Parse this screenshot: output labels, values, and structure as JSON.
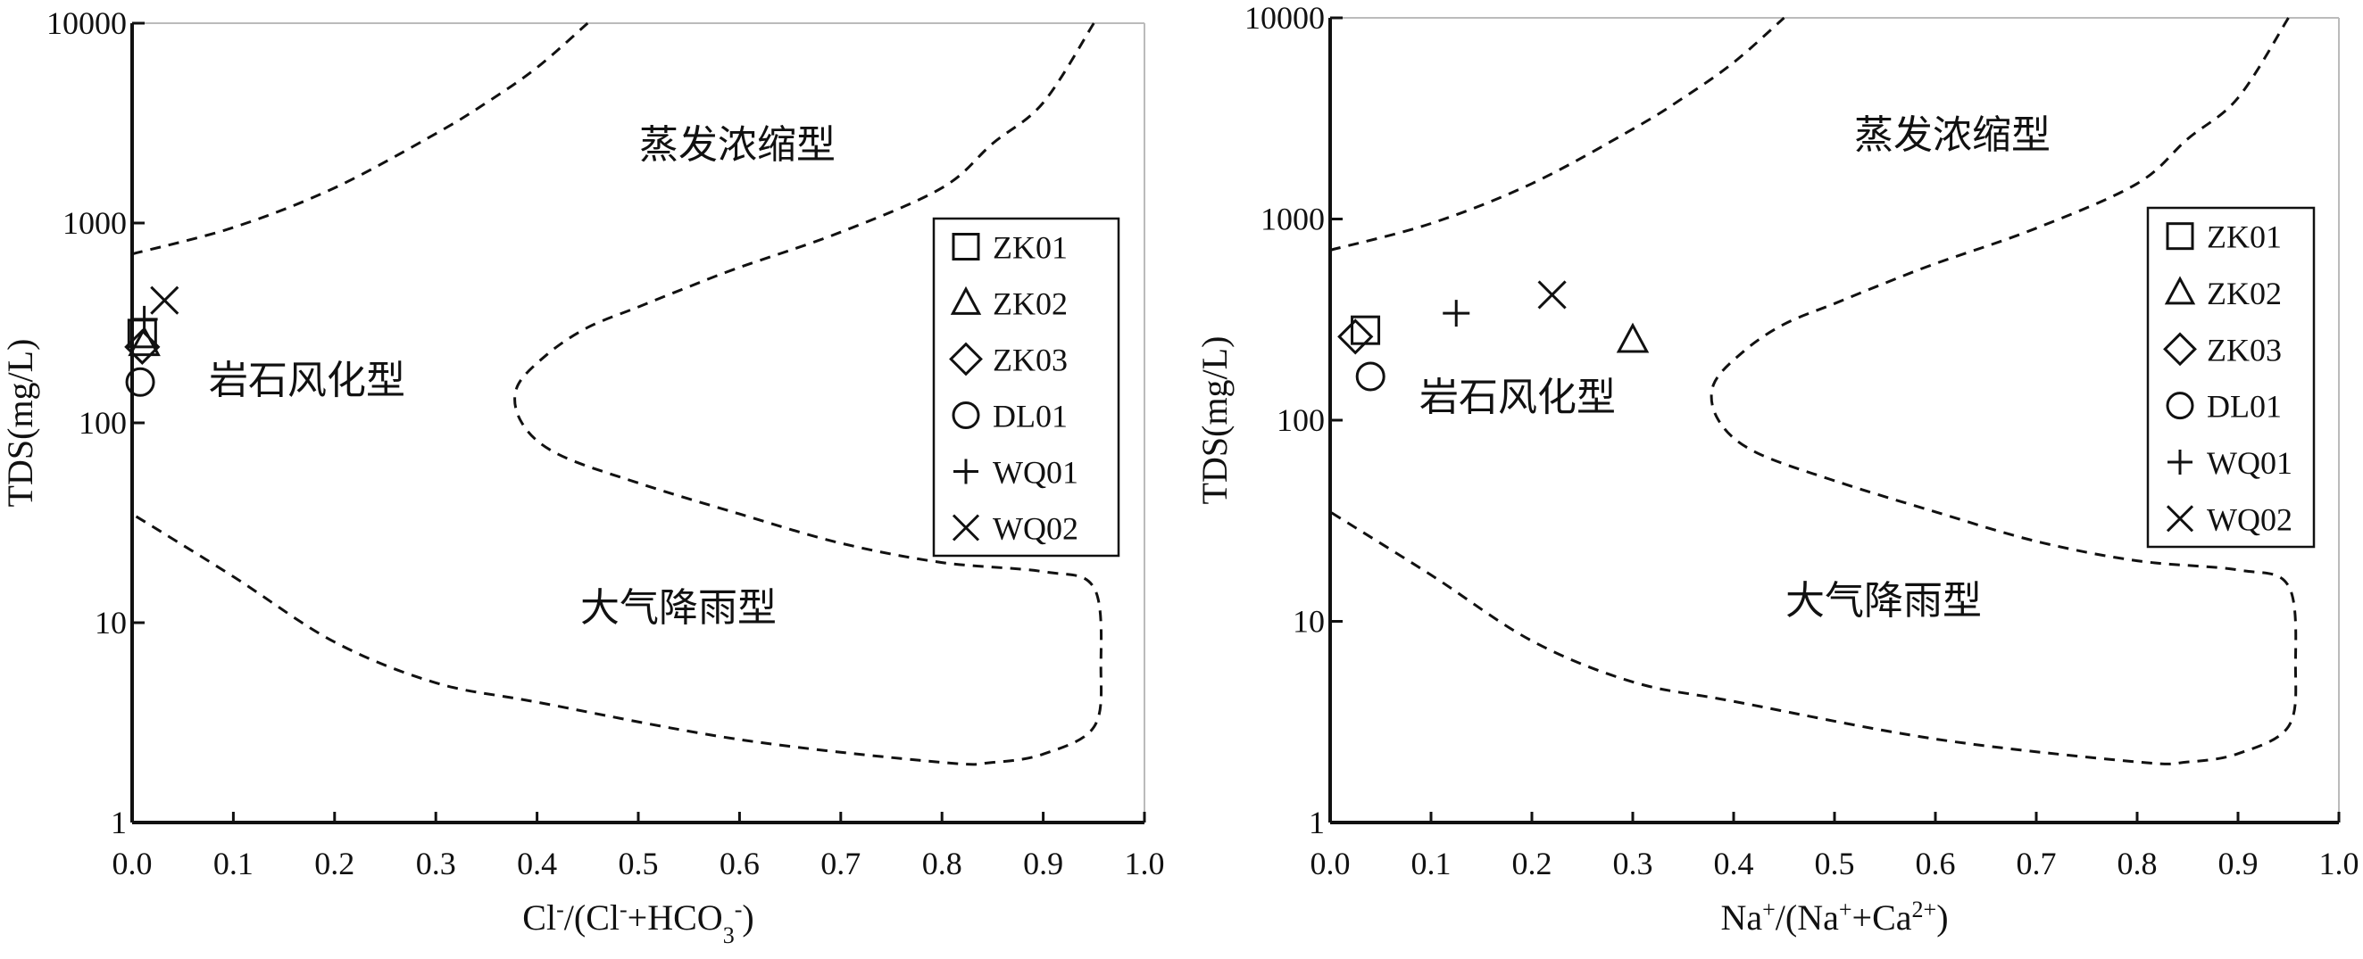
{
  "chart_data": [
    {
      "type": "scatter",
      "y_scale": "log",
      "xlim": [
        0.0,
        1.0
      ],
      "ylim": [
        1,
        10000
      ],
      "x_ticks": [
        "0.0",
        "0.1",
        "0.2",
        "0.3",
        "0.4",
        "0.5",
        "0.6",
        "0.7",
        "0.8",
        "0.9",
        "1.0"
      ],
      "y_ticks": [
        "1",
        "10",
        "100",
        "1000",
        "10000"
      ],
      "ylabel": "TDS(mg/L)",
      "xlabel": {
        "p1": "Cl",
        "s1": "-",
        "p2": "/(Cl",
        "s2": "-",
        "p3": "+HCO",
        "b1": "3",
        "s3": "-",
        "p4": ")"
      },
      "regions": {
        "evaporation": "蒸发浓缩型",
        "rock": "岩石风化型",
        "precipitation": "大气降雨型"
      },
      "boundaries": {
        "upper": [
          [
            0.0,
            700
          ],
          [
            0.1,
            950
          ],
          [
            0.2,
            1500
          ],
          [
            0.3,
            2800
          ],
          [
            0.35,
            4000
          ],
          [
            0.4,
            6000
          ],
          [
            0.45,
            10000
          ]
        ],
        "lower_envelope": [
          [
            0.95,
            10000
          ],
          [
            0.9,
            4000
          ],
          [
            0.85,
            2500
          ],
          [
            0.8,
            1500
          ],
          [
            0.7,
            900
          ],
          [
            0.6,
            600
          ],
          [
            0.55,
            480
          ],
          [
            0.5,
            380
          ],
          [
            0.45,
            300
          ],
          [
            0.41,
            220
          ],
          [
            0.38,
            150
          ],
          [
            0.385,
            100
          ],
          [
            0.42,
            70
          ],
          [
            0.5,
            50
          ],
          [
            0.6,
            35
          ],
          [
            0.7,
            25
          ],
          [
            0.8,
            20
          ],
          [
            0.9,
            18
          ],
          [
            0.95,
            15
          ],
          [
            0.957,
            6
          ],
          [
            0.95,
            3
          ],
          [
            0.9,
            2.2
          ],
          [
            0.85,
            2.0
          ],
          [
            0.8,
            2.0
          ],
          [
            0.6,
            2.6
          ],
          [
            0.4,
            4
          ],
          [
            0.3,
            5
          ],
          [
            0.2,
            8
          ],
          [
            0.1,
            17
          ],
          [
            0.0,
            35
          ]
        ]
      },
      "series": [
        {
          "name": "ZK01",
          "marker": "square",
          "points": [
            [
              0.01,
              280
            ]
          ]
        },
        {
          "name": "ZK02",
          "marker": "triangle",
          "points": [
            [
              0.012,
              250
            ]
          ]
        },
        {
          "name": "ZK03",
          "marker": "diamond",
          "points": [
            [
              0.01,
              240
            ]
          ]
        },
        {
          "name": "DL01",
          "marker": "circle",
          "points": [
            [
              0.008,
              160
            ]
          ]
        },
        {
          "name": "WQ01",
          "marker": "plus",
          "points": [
            [
              0.012,
              330
            ]
          ]
        },
        {
          "name": "WQ02",
          "marker": "cross",
          "points": [
            [
              0.032,
              410
            ]
          ]
        }
      ],
      "legend_position": "right"
    },
    {
      "type": "scatter",
      "y_scale": "log",
      "xlim": [
        0.0,
        1.0
      ],
      "ylim": [
        1,
        10000
      ],
      "x_ticks": [
        "0.0",
        "0.1",
        "0.2",
        "0.3",
        "0.4",
        "0.5",
        "0.6",
        "0.7",
        "0.8",
        "0.9",
        "1.0"
      ],
      "y_ticks": [
        "1",
        "10",
        "100",
        "1000",
        "10000"
      ],
      "ylabel": "TDS(mg/L)",
      "xlabel": {
        "p1": "Na",
        "s1": "+",
        "p2": "/(Na",
        "s2": "+",
        "p3": "+Ca",
        "s3": "2+",
        "p4": ")"
      },
      "regions": {
        "evaporation": "蒸发浓缩型",
        "rock": "岩石风化型",
        "precipitation": "大气降雨型"
      },
      "boundaries": {
        "upper": [
          [
            0.0,
            700
          ],
          [
            0.1,
            950
          ],
          [
            0.2,
            1500
          ],
          [
            0.3,
            2800
          ],
          [
            0.35,
            4000
          ],
          [
            0.4,
            6000
          ],
          [
            0.45,
            10000
          ]
        ],
        "lower_envelope": [
          [
            0.95,
            10000
          ],
          [
            0.9,
            4000
          ],
          [
            0.85,
            2500
          ],
          [
            0.8,
            1500
          ],
          [
            0.7,
            900
          ],
          [
            0.6,
            600
          ],
          [
            0.55,
            480
          ],
          [
            0.5,
            380
          ],
          [
            0.45,
            300
          ],
          [
            0.41,
            220
          ],
          [
            0.38,
            150
          ],
          [
            0.385,
            100
          ],
          [
            0.42,
            70
          ],
          [
            0.5,
            50
          ],
          [
            0.6,
            35
          ],
          [
            0.7,
            25
          ],
          [
            0.8,
            20
          ],
          [
            0.9,
            18
          ],
          [
            0.95,
            15
          ],
          [
            0.957,
            6
          ],
          [
            0.95,
            3
          ],
          [
            0.9,
            2.2
          ],
          [
            0.85,
            2.0
          ],
          [
            0.8,
            2.0
          ],
          [
            0.6,
            2.6
          ],
          [
            0.4,
            4
          ],
          [
            0.3,
            5
          ],
          [
            0.2,
            8
          ],
          [
            0.1,
            17
          ],
          [
            0.0,
            35
          ]
        ]
      },
      "series": [
        {
          "name": "ZK01",
          "marker": "square",
          "points": [
            [
              0.035,
              280
            ]
          ]
        },
        {
          "name": "ZK02",
          "marker": "triangle",
          "points": [
            [
              0.3,
              250
            ]
          ]
        },
        {
          "name": "ZK03",
          "marker": "diamond",
          "points": [
            [
              0.025,
              260
            ]
          ]
        },
        {
          "name": "DL01",
          "marker": "circle",
          "points": [
            [
              0.04,
              165
            ]
          ]
        },
        {
          "name": "WQ01",
          "marker": "plus",
          "points": [
            [
              0.125,
              340
            ]
          ]
        },
        {
          "name": "WQ02",
          "marker": "cross",
          "points": [
            [
              0.22,
              420
            ]
          ]
        }
      ],
      "legend_position": "right"
    }
  ]
}
